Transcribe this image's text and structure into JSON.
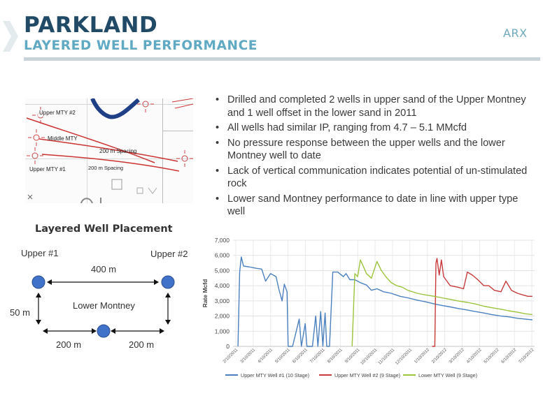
{
  "header": {
    "title": "PARKLAND",
    "subtitle": "LAYERED WELL PERFORMANCE",
    "logo": "ARX"
  },
  "map": {
    "labels": [
      "Upper MTY #2",
      "Middle MTY",
      "200 m Spacing",
      "200 m Spacing",
      "Upper MTY #1"
    ]
  },
  "bullets": [
    "Drilled and completed  2 wells in upper sand of the Upper Montney and 1 well offset in the lower sand in 2011",
    "All wells had similar IP, ranging from 4.7 – 5.1 MMcfd",
    "No pressure response between the upper wells and the lower Montney well to date",
    "Lack of vertical communication indicates potential of un-stimulated rock",
    "Lower sand Montney performance to date in line with upper type well"
  ],
  "placement": {
    "title": "Layered Well Placement",
    "upper1": "Upper #1",
    "upper2": "Upper #2",
    "lower": "Lower Montney",
    "d400": "400 m",
    "d50": "50 m",
    "d200a": "200 m",
    "d200b": "200 m"
  },
  "colors": {
    "well1": "#4a80c0",
    "well2": "#c8393b",
    "well3": "#9cc43c",
    "title": "#214a66",
    "accent": "#5fa9c3",
    "dot": "#3f72c8"
  },
  "chart_data": {
    "type": "line",
    "ylabel": "Rate Mcfd",
    "ylim": [
      0,
      7000
    ],
    "yticks": [
      "0",
      "1,000",
      "2,000",
      "3,000",
      "4,000",
      "5,000",
      "6,000",
      "7,000"
    ],
    "x_tick_labels": [
      "2/10/2011",
      "3/10/2011",
      "4/10/2011",
      "5/10/2011",
      "6/10/2011",
      "7/10/2011",
      "8/10/2011",
      "9/10/2011",
      "10/10/2011",
      "11/10/2011",
      "12/10/2011",
      "1/10/2012",
      "2/10/2012",
      "3/10/2012",
      "4/10/2012",
      "5/10/2012",
      "6/10/2012",
      "7/10/2012"
    ],
    "xlim": [
      "2011-02-01",
      "2012-08-01"
    ],
    "grid": true,
    "legend_position": "bottom",
    "series": [
      {
        "name": "Upper MTY Well #1 (10 Stage)",
        "color": "#4a80c0",
        "points": [
          [
            "2011-02-10",
            0
          ],
          [
            "2011-02-13",
            4900
          ],
          [
            "2011-02-16",
            5900
          ],
          [
            "2011-02-20",
            5300
          ],
          [
            "2011-03-01",
            5250
          ],
          [
            "2011-03-15",
            5150
          ],
          [
            "2011-03-25",
            5100
          ],
          [
            "2011-04-01",
            4300
          ],
          [
            "2011-04-10",
            4800
          ],
          [
            "2011-04-20",
            4600
          ],
          [
            "2011-04-25",
            3800
          ],
          [
            "2011-05-01",
            3000
          ],
          [
            "2011-05-05",
            4100
          ],
          [
            "2011-05-10",
            3600
          ],
          [
            "2011-05-12",
            0
          ],
          [
            "2011-05-20",
            0
          ],
          [
            "2011-06-01",
            1800
          ],
          [
            "2011-06-05",
            0
          ],
          [
            "2011-06-12",
            1500
          ],
          [
            "2011-06-15",
            0
          ],
          [
            "2011-06-25",
            0
          ],
          [
            "2011-07-01",
            2000
          ],
          [
            "2011-07-05",
            0
          ],
          [
            "2011-07-10",
            2300
          ],
          [
            "2011-07-14",
            0
          ],
          [
            "2011-07-18",
            2200
          ],
          [
            "2011-07-21",
            0
          ],
          [
            "2011-07-26",
            0
          ],
          [
            "2011-08-01",
            4900
          ],
          [
            "2011-08-10",
            4900
          ],
          [
            "2011-08-20",
            4600
          ],
          [
            "2011-08-25",
            4800
          ],
          [
            "2011-09-01",
            4400
          ],
          [
            "2011-09-10",
            4400
          ],
          [
            "2011-09-20",
            4200
          ],
          [
            "2011-10-01",
            4050
          ],
          [
            "2011-10-10",
            3700
          ],
          [
            "2011-10-20",
            3800
          ],
          [
            "2011-11-01",
            3600
          ],
          [
            "2011-11-15",
            3500
          ],
          [
            "2011-12-01",
            3300
          ],
          [
            "2011-12-15",
            3200
          ],
          [
            "2012-01-01",
            3050
          ],
          [
            "2012-01-15",
            2950
          ],
          [
            "2012-02-01",
            2800
          ],
          [
            "2012-02-15",
            2700
          ],
          [
            "2012-03-01",
            2600
          ],
          [
            "2012-03-15",
            2500
          ],
          [
            "2012-04-01",
            2400
          ],
          [
            "2012-04-15",
            2300
          ],
          [
            "2012-05-01",
            2200
          ],
          [
            "2012-05-15",
            2100
          ],
          [
            "2012-06-01",
            2000
          ],
          [
            "2012-06-15",
            1950
          ],
          [
            "2012-07-01",
            1850
          ],
          [
            "2012-07-15",
            1800
          ],
          [
            "2012-07-28",
            1750
          ]
        ]
      },
      {
        "name": "Upper MTY Well #2 (9 Stage)",
        "color": "#c8393b",
        "points": [
          [
            "2012-01-28",
            0
          ],
          [
            "2012-02-02",
            0
          ],
          [
            "2012-02-04",
            5500
          ],
          [
            "2012-02-06",
            5800
          ],
          [
            "2012-02-10",
            4700
          ],
          [
            "2012-02-14",
            5700
          ],
          [
            "2012-02-18",
            4600
          ],
          [
            "2012-02-24",
            4300
          ],
          [
            "2012-03-01",
            4000
          ],
          [
            "2012-03-15",
            3900
          ],
          [
            "2012-03-25",
            3800
          ],
          [
            "2012-04-01",
            4900
          ],
          [
            "2012-04-10",
            4700
          ],
          [
            "2012-04-20",
            4400
          ],
          [
            "2012-05-01",
            4000
          ],
          [
            "2012-05-10",
            4000
          ],
          [
            "2012-05-20",
            3700
          ],
          [
            "2012-06-01",
            3600
          ],
          [
            "2012-06-10",
            4300
          ],
          [
            "2012-06-20",
            3700
          ],
          [
            "2012-07-01",
            3500
          ],
          [
            "2012-07-10",
            3400
          ],
          [
            "2012-07-20",
            3300
          ],
          [
            "2012-07-28",
            3300
          ]
        ]
      },
      {
        "name": "Lower  MTY Well (9 Stage)",
        "color": "#9cc43c",
        "points": [
          [
            "2011-09-05",
            0
          ],
          [
            "2011-09-10",
            4800
          ],
          [
            "2011-09-15",
            4600
          ],
          [
            "2011-09-20",
            5700
          ],
          [
            "2011-09-25",
            5300
          ],
          [
            "2011-10-01",
            4800
          ],
          [
            "2011-10-10",
            4500
          ],
          [
            "2011-10-20",
            5600
          ],
          [
            "2011-10-28",
            5000
          ],
          [
            "2011-11-05",
            4600
          ],
          [
            "2011-11-15",
            4200
          ],
          [
            "2011-11-25",
            4000
          ],
          [
            "2011-12-05",
            3900
          ],
          [
            "2011-12-15",
            3700
          ],
          [
            "2012-01-01",
            3500
          ],
          [
            "2012-01-15",
            3400
          ],
          [
            "2012-02-01",
            3300
          ],
          [
            "2012-02-15",
            3200
          ],
          [
            "2012-03-01",
            3100
          ],
          [
            "2012-03-15",
            3000
          ],
          [
            "2012-04-01",
            2900
          ],
          [
            "2012-04-15",
            2800
          ],
          [
            "2012-05-01",
            2650
          ],
          [
            "2012-05-15",
            2550
          ],
          [
            "2012-06-01",
            2450
          ],
          [
            "2012-06-15",
            2350
          ],
          [
            "2012-07-01",
            2250
          ],
          [
            "2012-07-15",
            2150
          ],
          [
            "2012-07-28",
            2100
          ]
        ]
      }
    ]
  }
}
